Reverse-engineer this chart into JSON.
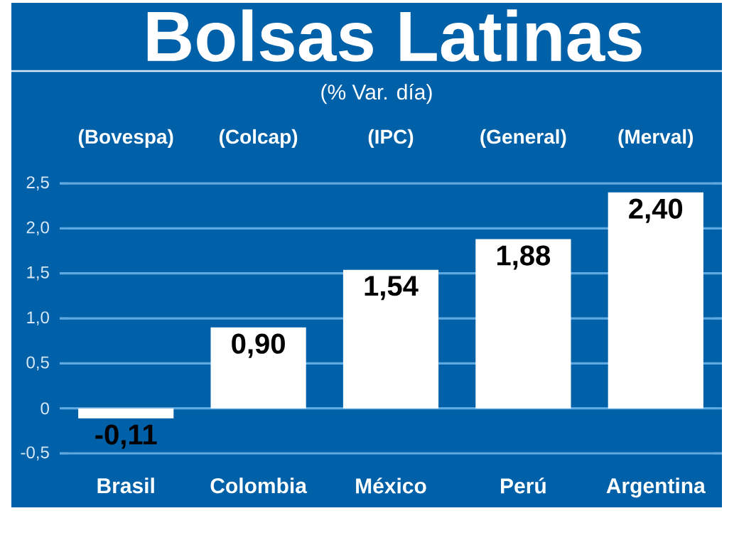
{
  "chart_data": {
    "type": "bar",
    "title": "Bolsas Latinas",
    "subtitle": "(% Var. día)",
    "categories": [
      "Brasil",
      "Colombia",
      "México",
      "Perú",
      "Argentina"
    ],
    "values": [
      -0.11,
      0.9,
      1.54,
      1.88,
      2.4
    ],
    "value_labels": [
      "-0,11",
      "0,90",
      "1,54",
      "1,88",
      "2,40"
    ],
    "color": "#ffffff",
    "ylim": [
      -0.5,
      2.5
    ],
    "yticks": [
      {
        "value": -0.5,
        "label": "-0,5"
      },
      0,
      {
        "value": 0.5,
        "label": "0,5"
      },
      {
        "value": 1.0,
        "label": "1,0"
      },
      {
        "value": 1.5,
        "label": "1,5"
      },
      {
        "value": 2.0,
        "label": "2,0"
      },
      {
        "value": 2.5,
        "label": "2,5"
      }
    ],
    "grid": "y",
    "annotations": [
      "(Bovespa)",
      "(Colcap)",
      "(IPC)",
      "(General)",
      "(Merval)"
    ]
  }
}
